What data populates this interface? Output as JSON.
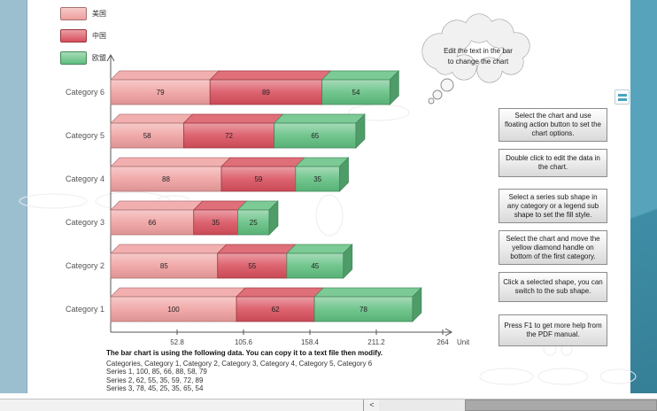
{
  "chart_data": {
    "type": "bar",
    "stacked": true,
    "orientation": "horizontal",
    "categories": [
      "Category 1",
      "Category 2",
      "Category 3",
      "Category 4",
      "Category 5",
      "Category 6"
    ],
    "series": [
      {
        "name": "美国",
        "color": "#ef9e9e",
        "values": [
          100,
          85,
          66,
          88,
          58,
          79
        ]
      },
      {
        "name": "中国",
        "color": "#d84f5c",
        "values": [
          62,
          55,
          35,
          59,
          72,
          89
        ]
      },
      {
        "name": "欧盟",
        "color": "#5fbe7f",
        "values": [
          78,
          45,
          25,
          35,
          65,
          54
        ]
      }
    ],
    "x_ticks": [
      "52.8",
      "105.6",
      "158.4",
      "211.2",
      "264"
    ],
    "xlim": [
      0,
      264
    ],
    "unit_label": "Unit",
    "legend_position": "top-left",
    "grid": false
  },
  "thought_bubble": {
    "line1": "Edit the text in the bar",
    "line2": "to change the chart"
  },
  "instructions": [
    "Select the chart and use floating action button to set the chart options.",
    "Double click to edit the data in the chart.",
    "Select a series sub shape in any category or a legend sub shape to set the fill style.",
    "Select the chart and move the yellow diamond handle on bottom of the first category.",
    "Click a selected shape, you can switch to the sub shape.",
    "Press F1 to get more help from the PDF manual."
  ],
  "data_note": {
    "title": "The bar chart is using the following data. You can copy it to a text file then modify.",
    "lines": [
      "Categories, Category 1, Category 2, Category 3, Category 4, Category 5, Category 6",
      "Series 1, 100, 85, 66, 88, 58, 79",
      "Series 2, 62, 55, 35, 59, 72, 89",
      "Series 3, 78, 45, 25, 35, 65, 54"
    ]
  },
  "scrollbar": {
    "left_arrow": "<"
  },
  "colors": {
    "left_panel": "#9cbfcf",
    "right_panel_top": "#57a3bc",
    "right_panel_bottom": "#357f96",
    "action_icon_accent": "#4aa4bf",
    "axis": "#555555"
  }
}
